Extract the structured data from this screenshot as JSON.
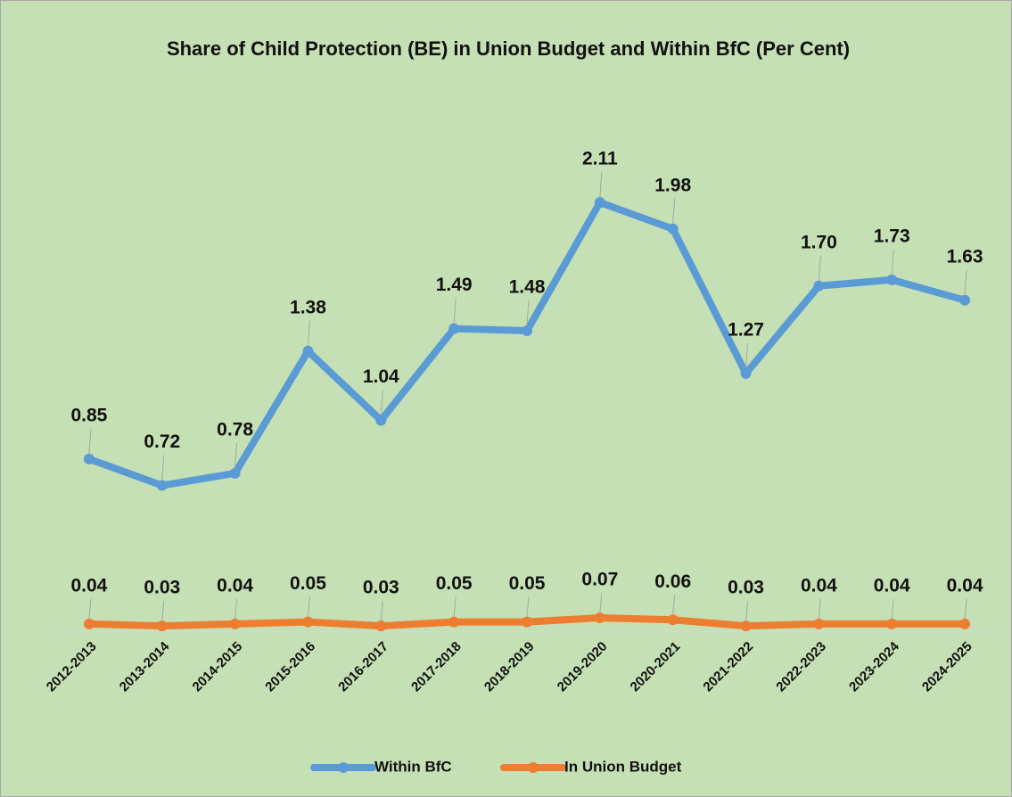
{
  "chart_data": {
    "type": "line",
    "title": "Share of Child Protection (BE) in Union Budget and Within BfC (Per Cent)",
    "categories": [
      "2012-2013",
      "2013-2014",
      "2014-2015",
      "2015-2016",
      "2016-2017",
      "2017-2018",
      "2018-2019",
      "2019-2020",
      "2020-2021",
      "2021-2022",
      "2022-2023",
      "2023-2024",
      "2024-2025"
    ],
    "series": [
      {
        "name": "Within BfC",
        "color": "#5b9bd5",
        "values": [
          0.85,
          0.72,
          0.78,
          1.38,
          1.04,
          1.49,
          1.48,
          2.11,
          1.98,
          1.27,
          1.7,
          1.73,
          1.63
        ],
        "value_labels": [
          "0.85",
          "0.72",
          "0.78",
          "1.38",
          "1.04",
          "1.49",
          "1.48",
          "2.11",
          "1.98",
          "1.27",
          "1.70",
          "1.73",
          "1.63"
        ]
      },
      {
        "name": "In Union Budget",
        "color": "#ed7d31",
        "values": [
          0.04,
          0.03,
          0.04,
          0.05,
          0.03,
          0.05,
          0.05,
          0.07,
          0.06,
          0.03,
          0.04,
          0.04,
          0.04
        ],
        "value_labels": [
          "0.04",
          "0.03",
          "0.04",
          "0.05",
          "0.03",
          "0.05",
          "0.05",
          "0.07",
          "0.06",
          "0.03",
          "0.04",
          "0.04",
          "0.04"
        ]
      }
    ],
    "ylim": [
      0,
      2.5
    ],
    "legend": "bottom"
  }
}
